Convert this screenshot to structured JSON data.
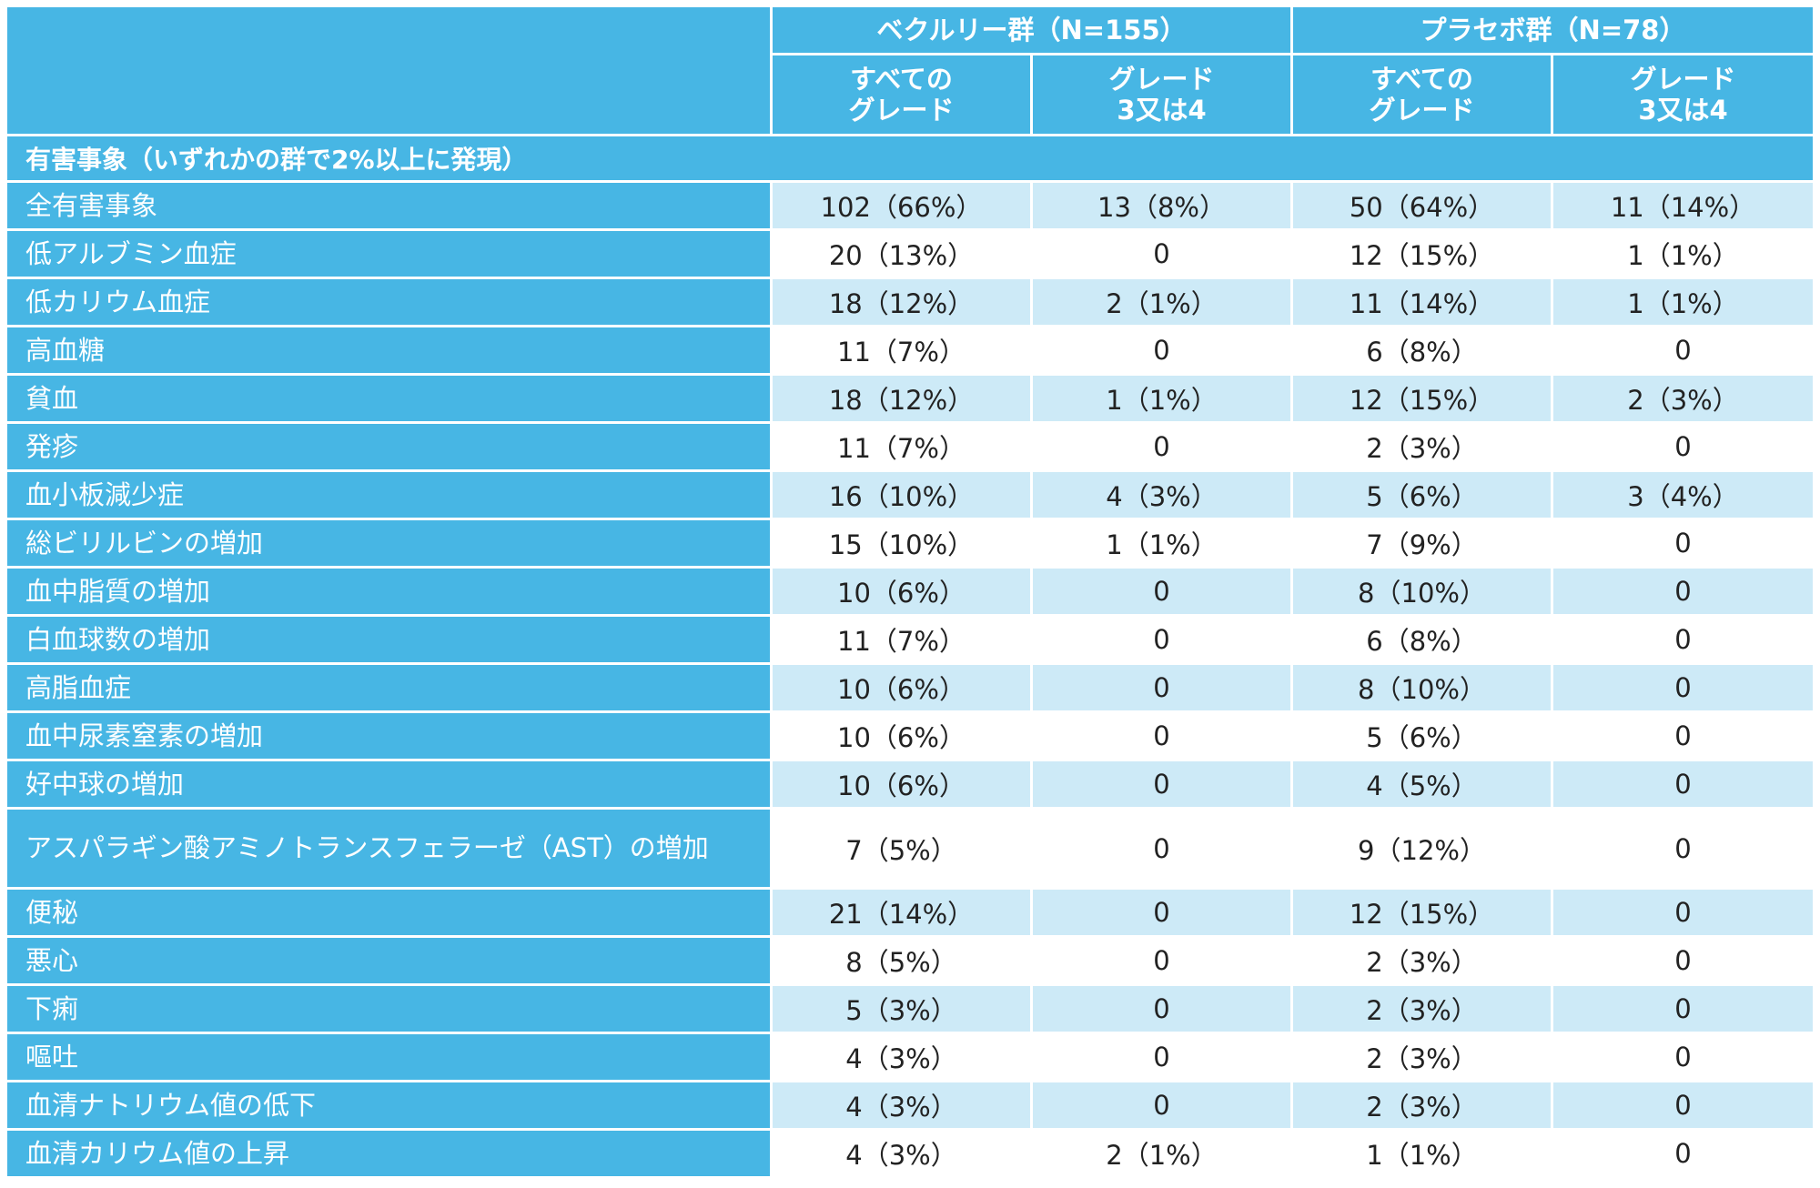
{
  "table": {
    "group_headers": [
      "ベクルリー群（N=155）",
      "プラセボ群（N=78）"
    ],
    "sub_headers": [
      "すべての\nグレード",
      "グレード\n3又は4",
      "すべての\nグレード",
      "グレード\n3又は4"
    ],
    "section_label": "有害事象（いずれかの群で2%以上に発現）",
    "rows": [
      {
        "label": "全有害事象",
        "values": [
          "102（66%）",
          "13（8%）",
          "50（64%）",
          "11（14%）"
        ]
      },
      {
        "label": "低アルブミン血症",
        "values": [
          "20（13%）",
          "0",
          "12（15%）",
          "1（1%）"
        ]
      },
      {
        "label": "低カリウム血症",
        "values": [
          "18（12%）",
          "2（1%）",
          "11（14%）",
          "1（1%）"
        ]
      },
      {
        "label": "高血糖",
        "values": [
          "11（7%）",
          "0",
          "6（8%）",
          "0"
        ]
      },
      {
        "label": "貧血",
        "values": [
          "18（12%）",
          "1（1%）",
          "12（15%）",
          "2（3%）"
        ]
      },
      {
        "label": "発疹",
        "values": [
          "11（7%）",
          "0",
          "2（3%）",
          "0"
        ]
      },
      {
        "label": "血小板減少症",
        "values": [
          "16（10%）",
          "4（3%）",
          "5（6%）",
          "3（4%）"
        ]
      },
      {
        "label": "総ビリルビンの増加",
        "values": [
          "15（10%）",
          "1（1%）",
          "7（9%）",
          "0"
        ]
      },
      {
        "label": "血中脂質の増加",
        "values": [
          "10（6%）",
          "0",
          "8（10%）",
          "0"
        ]
      },
      {
        "label": "白血球数の増加",
        "values": [
          "11（7%）",
          "0",
          "6（8%）",
          "0"
        ]
      },
      {
        "label": "高脂血症",
        "values": [
          "10（6%）",
          "0",
          "8（10%）",
          "0"
        ]
      },
      {
        "label": "血中尿素窒素の増加",
        "values": [
          "10（6%）",
          "0",
          "5（6%）",
          "0"
        ]
      },
      {
        "label": "好中球の増加",
        "values": [
          "10（6%）",
          "0",
          "4（5%）",
          "0"
        ]
      },
      {
        "label": "アスパラギン酸アミノトランスフェラーゼ（AST）の増加",
        "values": [
          "7（5%）",
          "0",
          "9（12%）",
          "0"
        ]
      },
      {
        "label": "便秘",
        "values": [
          "21（14%）",
          "0",
          "12（15%）",
          "0"
        ]
      },
      {
        "label": "悪心",
        "values": [
          "8（5%）",
          "0",
          "2（3%）",
          "0"
        ]
      },
      {
        "label": "下痢",
        "values": [
          "5（3%）",
          "0",
          "2（3%）",
          "0"
        ]
      },
      {
        "label": "嘔吐",
        "values": [
          "4（3%）",
          "0",
          "2（3%）",
          "0"
        ]
      },
      {
        "label": "血清ナトリウム値の低下",
        "values": [
          "4（3%）",
          "0",
          "2（3%）",
          "0"
        ]
      },
      {
        "label": "血清カリウム値の上昇",
        "values": [
          "4（3%）",
          "2（1%）",
          "1（1%）",
          "0"
        ]
      }
    ]
  },
  "colors": {
    "header_bg": "#47b6e4",
    "row_alt": "#cdeaf7",
    "row_plain": "#ffffff"
  }
}
